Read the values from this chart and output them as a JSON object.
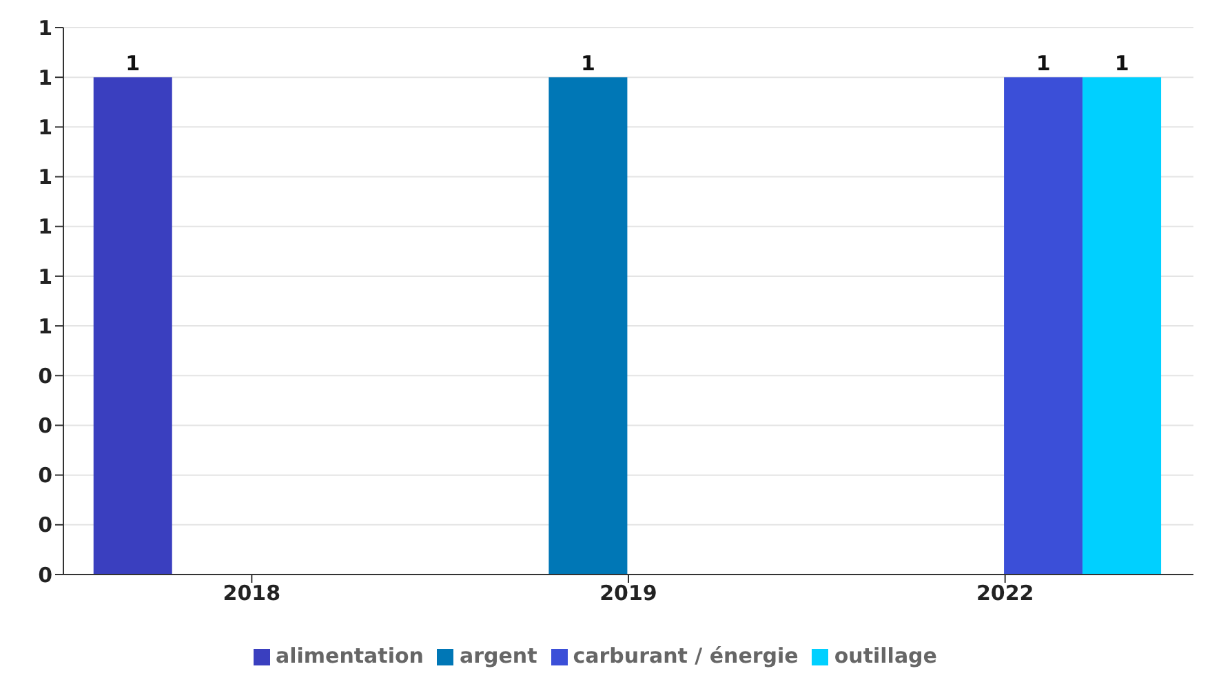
{
  "chart_data": {
    "type": "bar",
    "categories": [
      "2018",
      "2019",
      "2022"
    ],
    "series": [
      {
        "name": "alimentation",
        "color": "#3a3fbf",
        "values": [
          1,
          null,
          null
        ]
      },
      {
        "name": "argent",
        "color": "#0077b6",
        "values": [
          null,
          1,
          null
        ]
      },
      {
        "name": "carburant / énergie",
        "color": "#3b4fd8",
        "values": [
          null,
          null,
          1
        ]
      },
      {
        "name": "outillage",
        "color": "#00d0ff",
        "values": [
          null,
          null,
          1
        ]
      }
    ],
    "ylim": [
      0,
      1.1
    ],
    "yticks": [
      0,
      {
        "value": 0.1,
        "label": "0"
      },
      {
        "value": 0.2,
        "label": "0"
      },
      {
        "value": 0.3,
        "label": "0"
      },
      {
        "value": 0.4,
        "label": "0"
      },
      {
        "value": 0.5,
        "label": "1"
      },
      {
        "value": 0.6,
        "label": "1"
      },
      {
        "value": 0.7,
        "label": "1"
      },
      {
        "value": 0.8,
        "label": "1"
      },
      {
        "value": 0.9,
        "label": "1"
      },
      1,
      {
        "value": 1.1,
        "label": "1"
      }
    ],
    "grid": "y",
    "legend": "bottom",
    "data_labels": true
  }
}
